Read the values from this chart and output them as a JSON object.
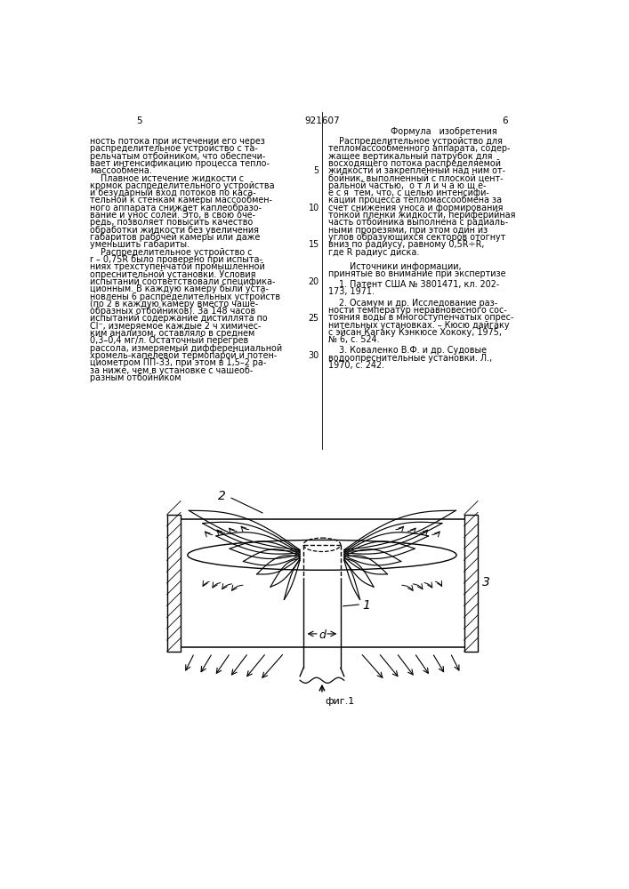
{
  "page_width": 7.07,
  "page_height": 10.0,
  "dpi": 100,
  "background_color": "#ffffff",
  "page_num_left": "5",
  "page_num_center": "921607",
  "page_num_right": "6",
  "right_col_title": "Формула   изобретения",
  "left_text_lines": [
    "ность потока при истечении его через",
    "распределительное устройство с та-",
    "рельчатым отбойником, что обеспечи-",
    "вает интенсификацию процесса тепло-",
    "массообмена.",
    "    Плавное истечение жидкости с",
    "кромок распределительного устройства",
    "и безударный вход потоков по каса-",
    "тельной к стенкам камеры массообмен-",
    "ного аппарата снижает каплеобразо-",
    "вание и унос солей. Это, в свою оче-",
    "редь, позволяет повысить качество",
    "обработки жидкости без увеличения",
    "габаритов рабочей камеры или даже",
    "уменьшить габариты.",
    "    Распределительное устройство с",
    "r – 0,75R было проверено при испыта-",
    "ниях трехступенчатой промышленной",
    "опреснительной установки. Условия",
    "испытаний соответствовали специфика-",
    "ционным. В каждую камеру были уста-",
    "новлены 6 распределительных устройств",
    "(по 2 в каждую камеру вместо чаше-",
    "образных отбойников). За 148 часов",
    "испытаний содержание дистиллята по",
    "Cl⁻, измеряемое каждые 2 ч химичес-",
    "ким анализом, оставляло в среднем",
    "0,3–0,4 мг/л. Остаточный перегрев",
    "рассола, измеряемый дифференциальной",
    "хромель-капелевой термопарой и потен-",
    "циометром ПП-33, при этом в 1,5–2 ра-",
    "за ниже, чем в установке с чашеоб-",
    "разным отбойником"
  ],
  "right_text_lines": [
    "    Распределительное устройство для",
    "тепломассообменного аппарата, содер-",
    "жащее вертикальный патрубок для",
    "восходящего потока распределяемой",
    "жидкости и закрепленный над ним от-",
    "бойник, выполненный с плоской цент-",
    "ральной частью,  о т л и ч а ю щ е-",
    "е с я  тем, что, с целью интенсифи-",
    "кации процесса тепломассообмена за",
    "счет снижения уноса и формирования",
    "тонкой пленки жидкости, периферийная",
    "часть отбойника выполнена с радиаль-",
    "ными прорезями, при этом один из",
    "углов образующихся секторов отогнут",
    "вниз по радиусу, равному 0,5R÷R,",
    "где R радиус диска."
  ],
  "sources_header_lines": [
    "        Источники информации,",
    "принятые во внимание при экспертизе"
  ],
  "source1_lines": [
    "    1. Патент США № 3801471, кл. 202-",
    "173, 1971."
  ],
  "source2_lines": [
    "    2. Осамум и др. Исследование раз-",
    "ности температур неравновесного сос-",
    "тояния воды в многоступенчатых опрес-",
    "нительных установках. – Кюсю дайгаку",
    "с эйсан Кагаку Кэнкюсе Хококу, 1975,",
    "№ 6, с. 524."
  ],
  "source3_lines": [
    "    3. Коваленко В.Ф. и др. Судовые",
    "водоопреснительные установки. Л.,",
    "1970, с. 242."
  ],
  "line_numbers": [
    5,
    10,
    15,
    20,
    25,
    30
  ],
  "line_number_rows": [
    4,
    9,
    14,
    19,
    24,
    29
  ],
  "fig_caption": "фиг.1",
  "label_1": "1",
  "label_2": "2",
  "label_3": "3",
  "label_d": "d"
}
